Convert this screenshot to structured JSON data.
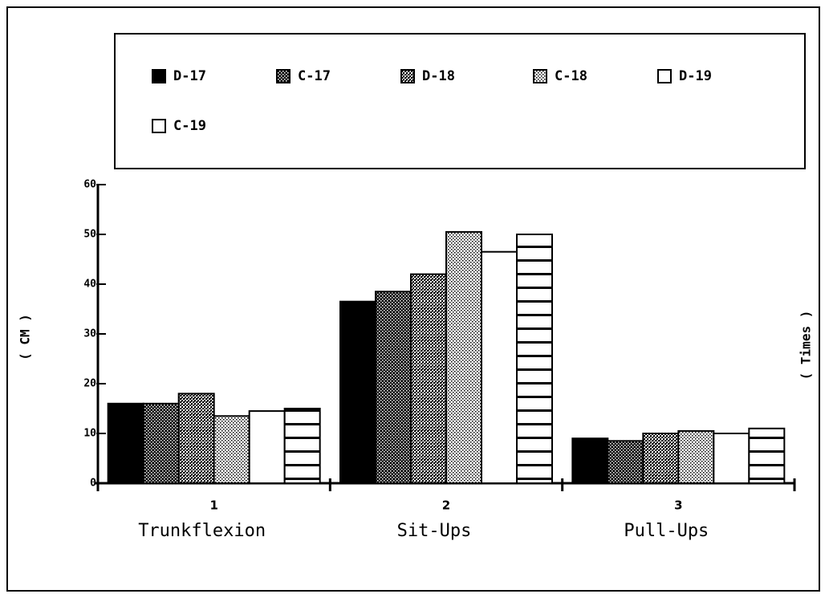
{
  "chart_data": {
    "type": "bar",
    "categories": [
      "1",
      "2",
      "3"
    ],
    "group_labels": [
      "Trunkflexion",
      "Sit-Ups",
      "Pull-Ups"
    ],
    "y_label": "( CM )",
    "y2_label": "( Times )",
    "ylim": [
      0,
      60
    ],
    "yticks": [
      0,
      10,
      20,
      30,
      40,
      50,
      60
    ],
    "series": [
      {
        "name": "D-17",
        "color": "#000000",
        "pattern": "solid",
        "values": [
          16,
          36.5,
          9
        ]
      },
      {
        "name": "C-17",
        "color": "#000000",
        "pattern": "dense-dots",
        "values": [
          16,
          38.5,
          8.5
        ]
      },
      {
        "name": "D-18",
        "color": "#000000",
        "pattern": "medium-dots",
        "values": [
          18,
          42,
          10
        ]
      },
      {
        "name": "C-18",
        "color": "#000000",
        "pattern": "light-dots",
        "values": [
          13.5,
          50.5,
          10.5
        ]
      },
      {
        "name": "D-19",
        "color": "#000000",
        "pattern": "empty",
        "values": [
          14.5,
          46.5,
          10
        ]
      },
      {
        "name": "C-19",
        "color": "#000000",
        "pattern": "stripes",
        "values": [
          15,
          50,
          11
        ]
      }
    ]
  }
}
